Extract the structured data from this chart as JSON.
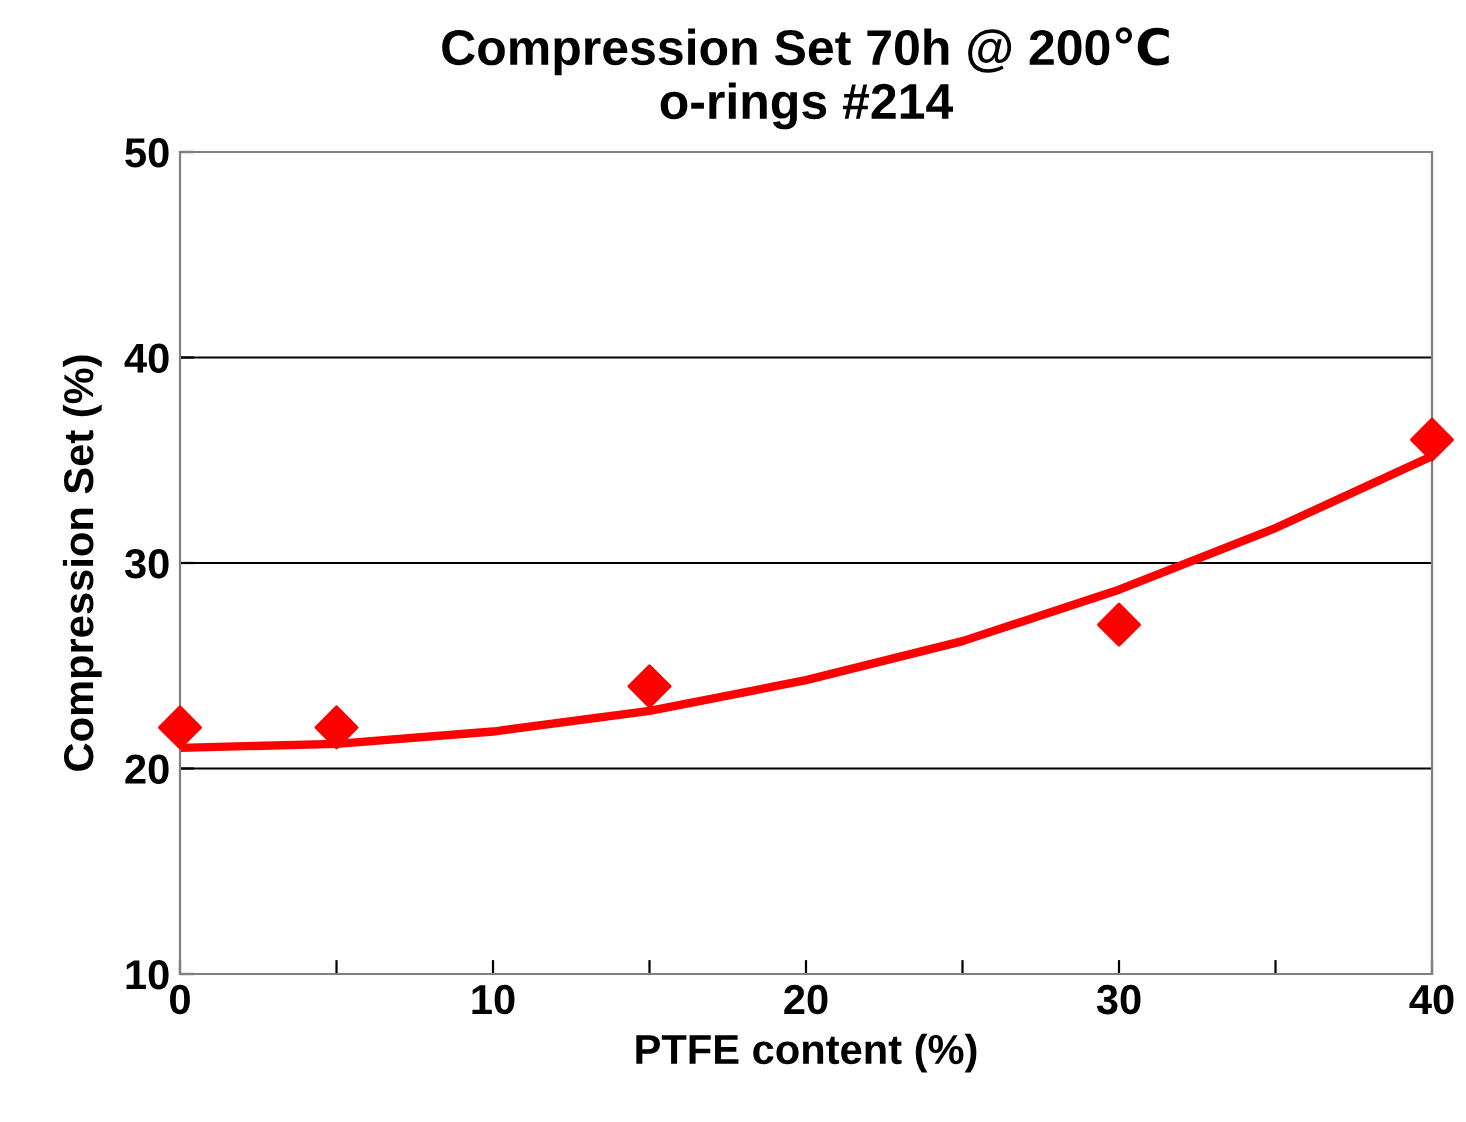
{
  "chart_data": {
    "type": "scatter",
    "title": "Compression Set 70h @ 200℃\no-rings #214",
    "xlabel": "PTFE content (%)",
    "ylabel": "Compression Set (%)",
    "series": [
      {
        "color": "#ff0000",
        "marker": "diamond",
        "x": [
          0,
          5,
          15,
          30,
          40
        ],
        "values": [
          22,
          22,
          24,
          27,
          36
        ]
      },
      {
        "type": "line",
        "color": "#ff0000",
        "marker": "none",
        "line_style": "solid",
        "x": [
          0,
          5,
          10,
          15,
          20,
          25,
          30,
          35,
          40
        ],
        "values": [
          21.0,
          21.2,
          21.8,
          22.8,
          24.3,
          26.2,
          28.7,
          31.7,
          35.2
        ]
      }
    ],
    "xlim": [
      0,
      40
    ],
    "xticks": [
      0,
      {
        "value": 5,
        "label": null
      },
      10,
      {
        "value": 15,
        "label": null
      },
      20,
      {
        "value": 25,
        "label": null
      },
      30,
      {
        "value": 35,
        "label": null
      },
      40
    ],
    "ylim": [
      10,
      50
    ],
    "yticks": [
      10,
      20,
      30,
      40,
      50
    ],
    "grid": "y",
    "legend": false
  }
}
